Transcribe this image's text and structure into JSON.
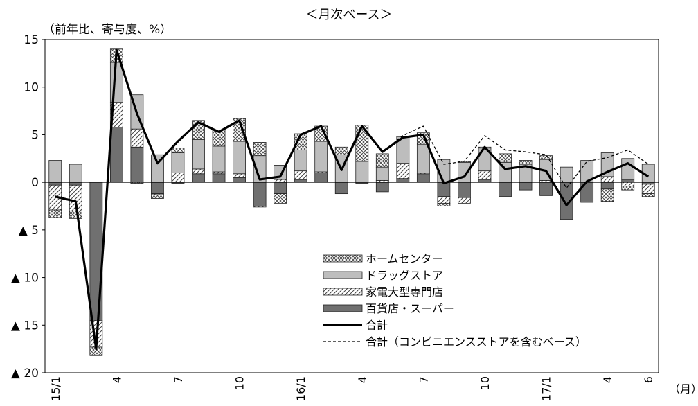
{
  "chart_data": {
    "type": "bar",
    "title": "＜月次ベース＞",
    "ylabel": "（前年比、寄与度、%）",
    "xunit": "（月）",
    "ylim": [
      -20,
      15
    ],
    "yticks": [
      {
        "v": 15,
        "label": "15"
      },
      {
        "v": 10,
        "label": "10"
      },
      {
        "v": 5,
        "label": "5"
      },
      {
        "v": 0,
        "label": "0"
      },
      {
        "v": -5,
        "label": "▲ 5"
      },
      {
        "v": -10,
        "label": "▲ 10"
      },
      {
        "v": -15,
        "label": "▲ 15"
      },
      {
        "v": -20,
        "label": "▲ 20"
      }
    ],
    "categories": [
      "15/1",
      "15/2",
      "15/3",
      "15/4",
      "15/5",
      "15/6",
      "15/7",
      "15/8",
      "15/9",
      "15/10",
      "15/11",
      "15/12",
      "16/1",
      "16/2",
      "16/3",
      "16/4",
      "16/5",
      "16/6",
      "16/7",
      "16/8",
      "16/9",
      "16/10",
      "16/11",
      "16/12",
      "17/1",
      "17/2",
      "17/3",
      "17/4",
      "17/5",
      "17/6"
    ],
    "xticklabels": [
      {
        "i": 0,
        "label": "15/1"
      },
      {
        "i": 3,
        "label": "4"
      },
      {
        "i": 6,
        "label": "7"
      },
      {
        "i": 9,
        "label": "10"
      },
      {
        "i": 12,
        "label": "16/1"
      },
      {
        "i": 15,
        "label": "4"
      },
      {
        "i": 18,
        "label": "7"
      },
      {
        "i": 21,
        "label": "10"
      },
      {
        "i": 24,
        "label": "17/1"
      },
      {
        "i": 27,
        "label": "4"
      },
      {
        "i": 29,
        "label": "6"
      }
    ],
    "series": [
      {
        "name": "百貨店・スーパー",
        "kind": "bar",
        "pattern": "dark",
        "values": [
          -0.3,
          -0.3,
          -14.5,
          5.8,
          3.7,
          -1.2,
          -0.1,
          0.9,
          0.9,
          0.5,
          -2.5,
          -1.2,
          0.3,
          1.0,
          -1.2,
          -0.1,
          -1.0,
          0.4,
          0.9,
          -1.5,
          -1.6,
          0.3,
          -1.5,
          -0.8,
          -1.4,
          -3.9,
          -2.1,
          -0.7,
          0.3,
          -0.2
        ]
      },
      {
        "name": "家電大型専門店",
        "kind": "bar",
        "pattern": "hatch",
        "values": [
          -2.6,
          -2.7,
          -2.8,
          2.6,
          1.9,
          -0.1,
          1.0,
          0.5,
          0.2,
          0.4,
          -0.1,
          0.3,
          0.9,
          0.1,
          0.0,
          0.0,
          0.2,
          1.6,
          0.1,
          -0.7,
          -0.6,
          0.9,
          0.0,
          0.0,
          0.2,
          0.0,
          0.0,
          0.6,
          -0.4,
          -1.0
        ]
      },
      {
        "name": "ドラッグストア",
        "kind": "bar",
        "pattern": "light",
        "values": [
          2.3,
          1.9,
          0.0,
          4.2,
          3.6,
          2.9,
          2.1,
          3.1,
          2.7,
          3.4,
          2.8,
          1.5,
          2.2,
          3.2,
          2.9,
          2.2,
          1.4,
          2.8,
          3.0,
          2.4,
          2.1,
          2.4,
          2.1,
          1.9,
          2.2,
          1.6,
          2.3,
          2.5,
          2.2,
          1.9
        ]
      },
      {
        "name": "ホームセンター",
        "kind": "bar",
        "pattern": "cross",
        "values": [
          -0.8,
          -0.8,
          -0.9,
          1.4,
          -0.1,
          -0.4,
          0.5,
          2.0,
          1.7,
          2.4,
          1.4,
          -1.0,
          1.7,
          1.6,
          0.8,
          3.8,
          1.4,
          0.0,
          1.2,
          -0.3,
          0.1,
          0.1,
          0.9,
          0.4,
          0.4,
          0.0,
          0.0,
          -1.3,
          -0.4,
          -0.3
        ]
      },
      {
        "name": "合計",
        "kind": "line",
        "style": "solid",
        "values": [
          -1.5,
          -2.0,
          -17.5,
          13.9,
          7.2,
          2.0,
          4.3,
          6.3,
          5.3,
          6.5,
          0.3,
          0.6,
          5.0,
          5.9,
          1.3,
          5.9,
          3.2,
          4.7,
          5.0,
          -0.1,
          0.6,
          3.7,
          1.4,
          1.7,
          1.2,
          -2.4,
          0.1,
          1.1,
          2.0,
          0.6
        ]
      },
      {
        "name": "合計（コンビニエンスストアを含むベース）",
        "kind": "line",
        "style": "dashed",
        "values": [
          -1.5,
          -2.0,
          -17.5,
          13.9,
          7.2,
          2.0,
          4.3,
          6.3,
          5.3,
          6.5,
          0.3,
          0.6,
          5.0,
          5.9,
          1.3,
          5.9,
          3.2,
          4.9,
          5.9,
          1.9,
          2.2,
          4.9,
          3.4,
          3.2,
          2.9,
          -0.6,
          2.2,
          2.6,
          3.4,
          1.9
        ]
      }
    ],
    "legend_order": [
      "ホームセンター",
      "ドラッグストア",
      "家電大型専門店",
      "百貨店・スーパー",
      "合計",
      "合計（コンビニエンスストアを含むベース）"
    ],
    "legend_position": "inside-bottom-center",
    "grid": false
  }
}
